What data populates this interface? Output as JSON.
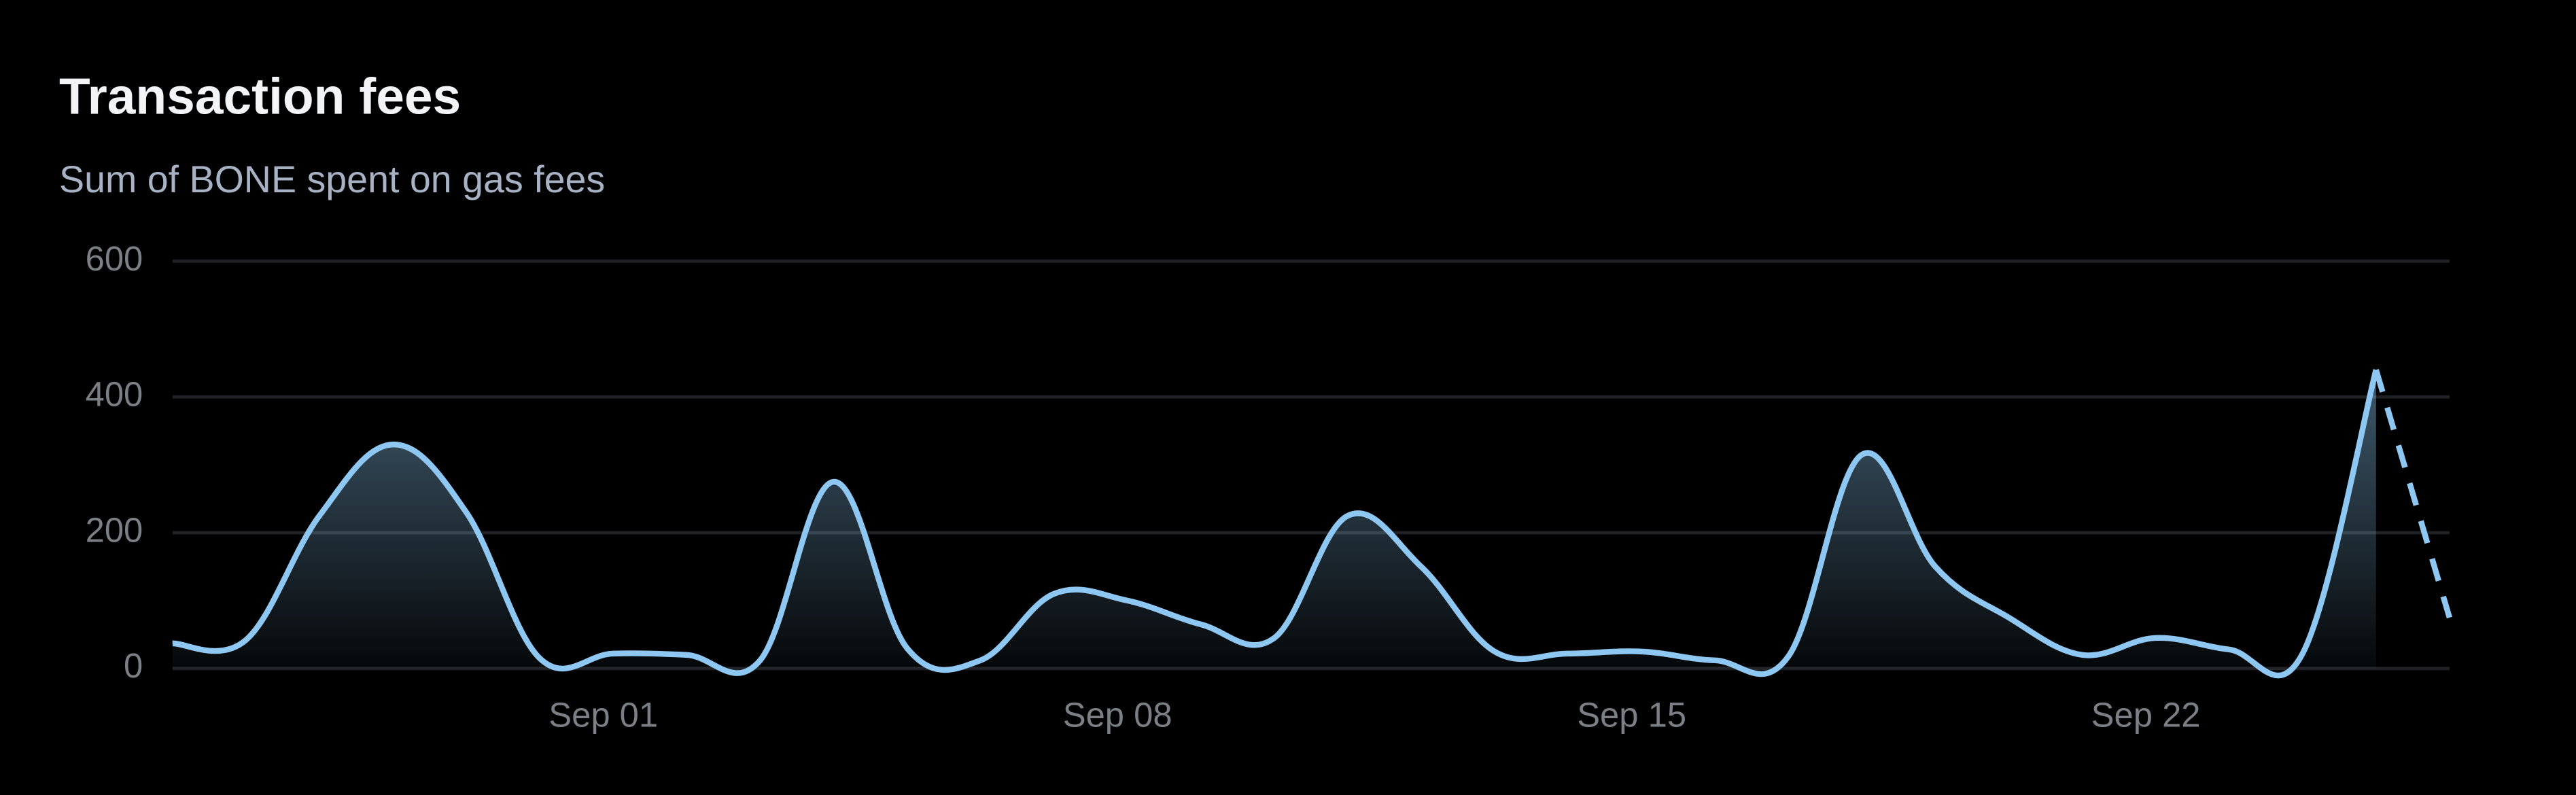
{
  "chart_data": {
    "type": "line",
    "title": "Transaction fees",
    "subtitle": "Sum of BONE spent on gas fees",
    "categories": [
      null,
      null,
      null,
      null,
      null,
      null,
      "Sep 01",
      null,
      null,
      null,
      null,
      null,
      null,
      "Sep 08",
      null,
      null,
      null,
      null,
      null,
      null,
      "Sep 15",
      null,
      null,
      null,
      null,
      null,
      null,
      "Sep 22",
      null,
      null,
      null,
      null
    ],
    "series": [
      {
        "name": "Transaction fees",
        "color": "#8ec8f2",
        "values": [
          37,
          42,
          225,
          330,
          230,
          15,
          22,
          20,
          12,
          275,
          30,
          12,
          110,
          100,
          65,
          45,
          225,
          150,
          25,
          22,
          25,
          12,
          18,
          315,
          150,
          75,
          20,
          45,
          28,
          22,
          440,
          75
        ]
      }
    ],
    "dashed_last": true,
    "ylim": [
      0,
      600
    ],
    "yticks": [
      0,
      200,
      400,
      600
    ],
    "grid": true
  }
}
